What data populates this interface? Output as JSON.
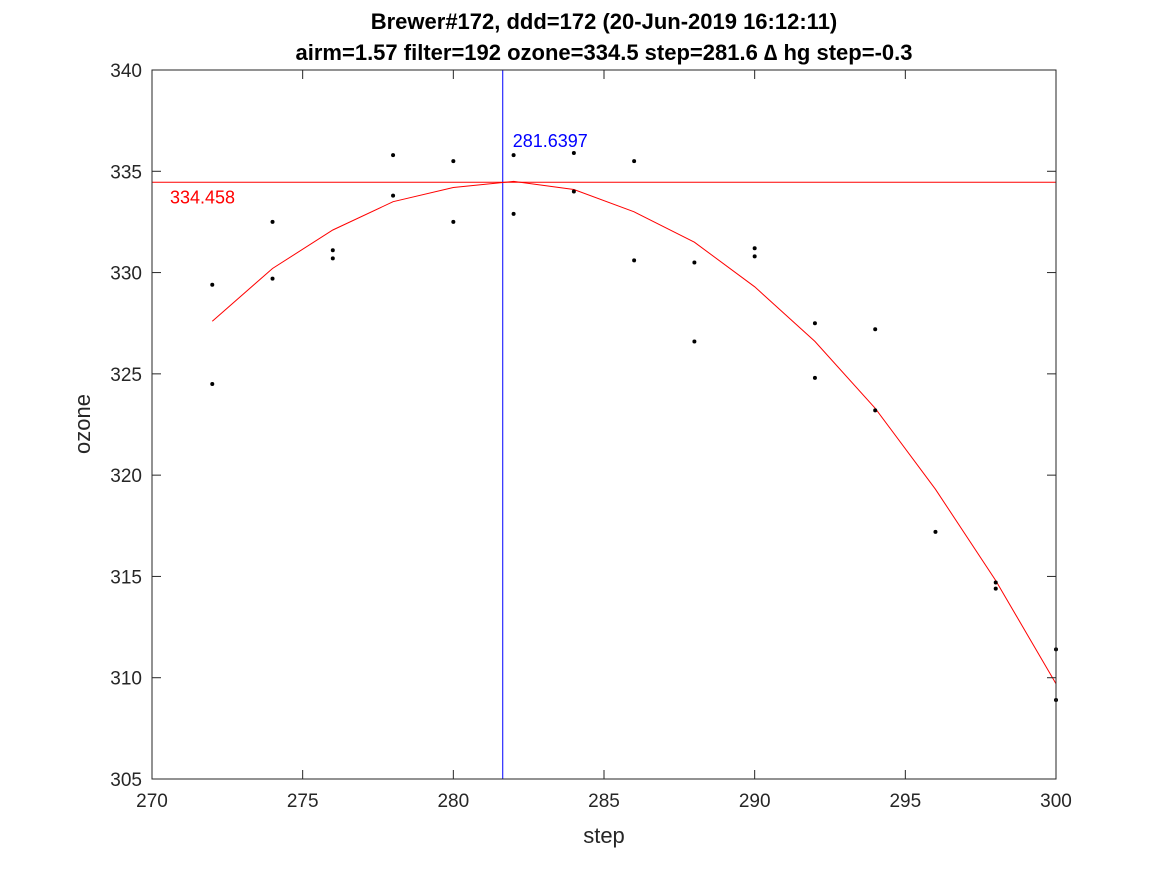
{
  "chart_data": {
    "type": "scatter",
    "title": [
      "Brewer#172, ddd=172 (20-Jun-2019 16:12:11)",
      "airm=1.57  filter=192 ozone=334.5  step=281.6 ∆ hg step=-0.3"
    ],
    "xlabel": "step",
    "ylabel": "ozone",
    "xlim": [
      270,
      300
    ],
    "ylim": [
      305,
      340
    ],
    "xticks": [
      270,
      275,
      280,
      285,
      290,
      295,
      300
    ],
    "yticks": [
      305,
      310,
      315,
      320,
      325,
      330,
      335,
      340
    ],
    "grid": false,
    "points": {
      "color": "#000000",
      "x": [
        272,
        272,
        274,
        274,
        276,
        276,
        278,
        278,
        280,
        280,
        282,
        282,
        284,
        284,
        286,
        286,
        288,
        288,
        290,
        290,
        292,
        292,
        294,
        294,
        296,
        298,
        298,
        300,
        300
      ],
      "y": [
        329.4,
        324.5,
        332.5,
        329.7,
        331.1,
        330.7,
        335.8,
        333.8,
        335.5,
        332.5,
        335.8,
        332.9,
        335.9,
        334.0,
        335.5,
        330.6,
        330.5,
        326.6,
        331.2,
        330.8,
        327.5,
        324.8,
        327.2,
        323.2,
        317.2,
        314.7,
        314.4,
        311.4,
        308.9
      ]
    },
    "fit": {
      "color": "#ff0000",
      "x": [
        272,
        274,
        276,
        278,
        280,
        282,
        284,
        286,
        288,
        290,
        292,
        294,
        296,
        298,
        300
      ],
      "y": [
        327.6,
        330.2,
        332.1,
        333.5,
        334.2,
        334.5,
        334.1,
        333.0,
        331.5,
        329.3,
        326.6,
        323.3,
        319.3,
        314.8,
        309.7
      ]
    },
    "max_ozone_line": {
      "y": 334.458,
      "label": "334.458",
      "color": "#ff0000"
    },
    "max_step_line": {
      "x": 281.6397,
      "label": "281.6397",
      "color": "#0000ff"
    }
  }
}
